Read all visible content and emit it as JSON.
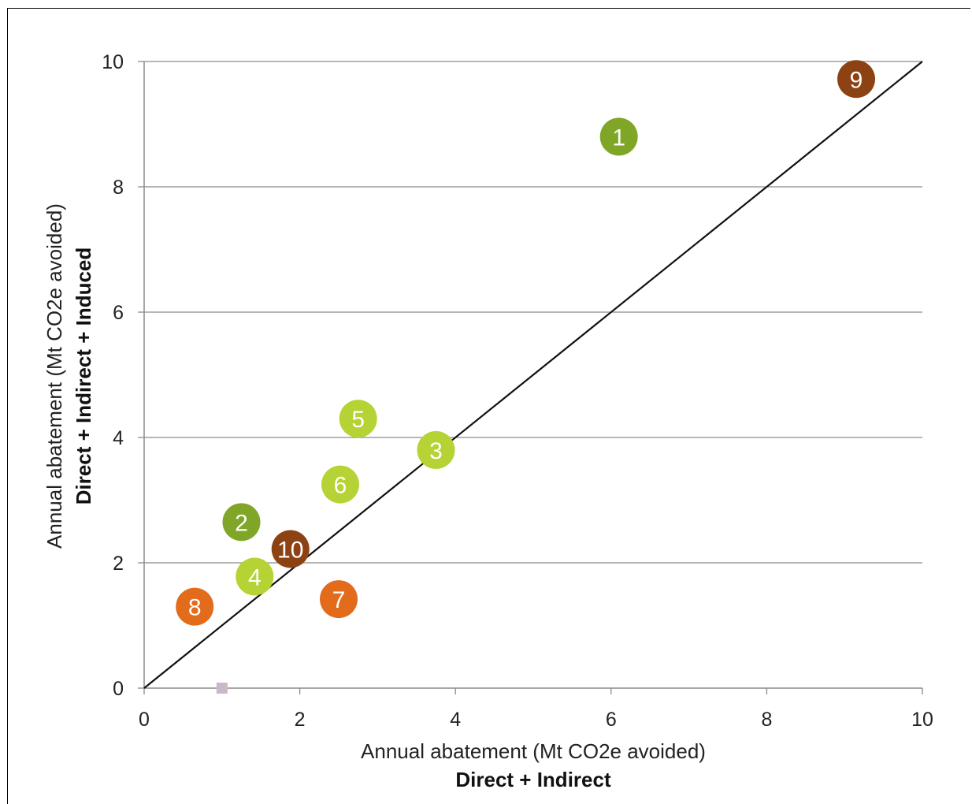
{
  "chart_data": {
    "type": "scatter",
    "title": "",
    "xlabel": "Annual abatement (Mt CO2e avoided)",
    "xlabel_sub": "Direct + Indirect",
    "ylabel": "Annual abatement (Mt CO2e avoided)",
    "ylabel_sub": "Direct + Indirect + Induced",
    "xlim": [
      0,
      10
    ],
    "ylim": [
      0,
      10
    ],
    "x_ticks": [
      "0",
      "2",
      "4",
      "6",
      "8",
      "10"
    ],
    "y_ticks": [
      "0",
      "2",
      "4",
      "6",
      "8",
      "10"
    ],
    "grid": "horizontal",
    "reference_line": {
      "from": [
        0,
        0
      ],
      "to": [
        10,
        10
      ],
      "color": "#111111"
    },
    "points": [
      {
        "label": "1",
        "x": 6.1,
        "y": 8.8,
        "color": "#7fa626"
      },
      {
        "label": "2",
        "x": 1.25,
        "y": 2.65,
        "color": "#7fa626"
      },
      {
        "label": "3",
        "x": 3.75,
        "y": 3.8,
        "color": "#b5d334"
      },
      {
        "label": "4",
        "x": 1.42,
        "y": 1.78,
        "color": "#b5d334"
      },
      {
        "label": "5",
        "x": 2.75,
        "y": 4.3,
        "color": "#b5d334"
      },
      {
        "label": "6",
        "x": 2.52,
        "y": 3.25,
        "color": "#b5d334"
      },
      {
        "label": "7",
        "x": 2.5,
        "y": 1.42,
        "color": "#e26b1c"
      },
      {
        "label": "8",
        "x": 0.65,
        "y": 1.3,
        "color": "#e26b1c"
      },
      {
        "label": "9",
        "x": 9.15,
        "y": 9.72,
        "color": "#8c4212"
      },
      {
        "label": "10",
        "x": 1.88,
        "y": 2.22,
        "color": "#8c4212"
      }
    ],
    "marker": {
      "shape": "square",
      "x": 1.0,
      "y": 0.0,
      "color": "#c9b8c8"
    },
    "gridline_color": "#8a8a8a",
    "axis_color": "#8a8a8a"
  }
}
